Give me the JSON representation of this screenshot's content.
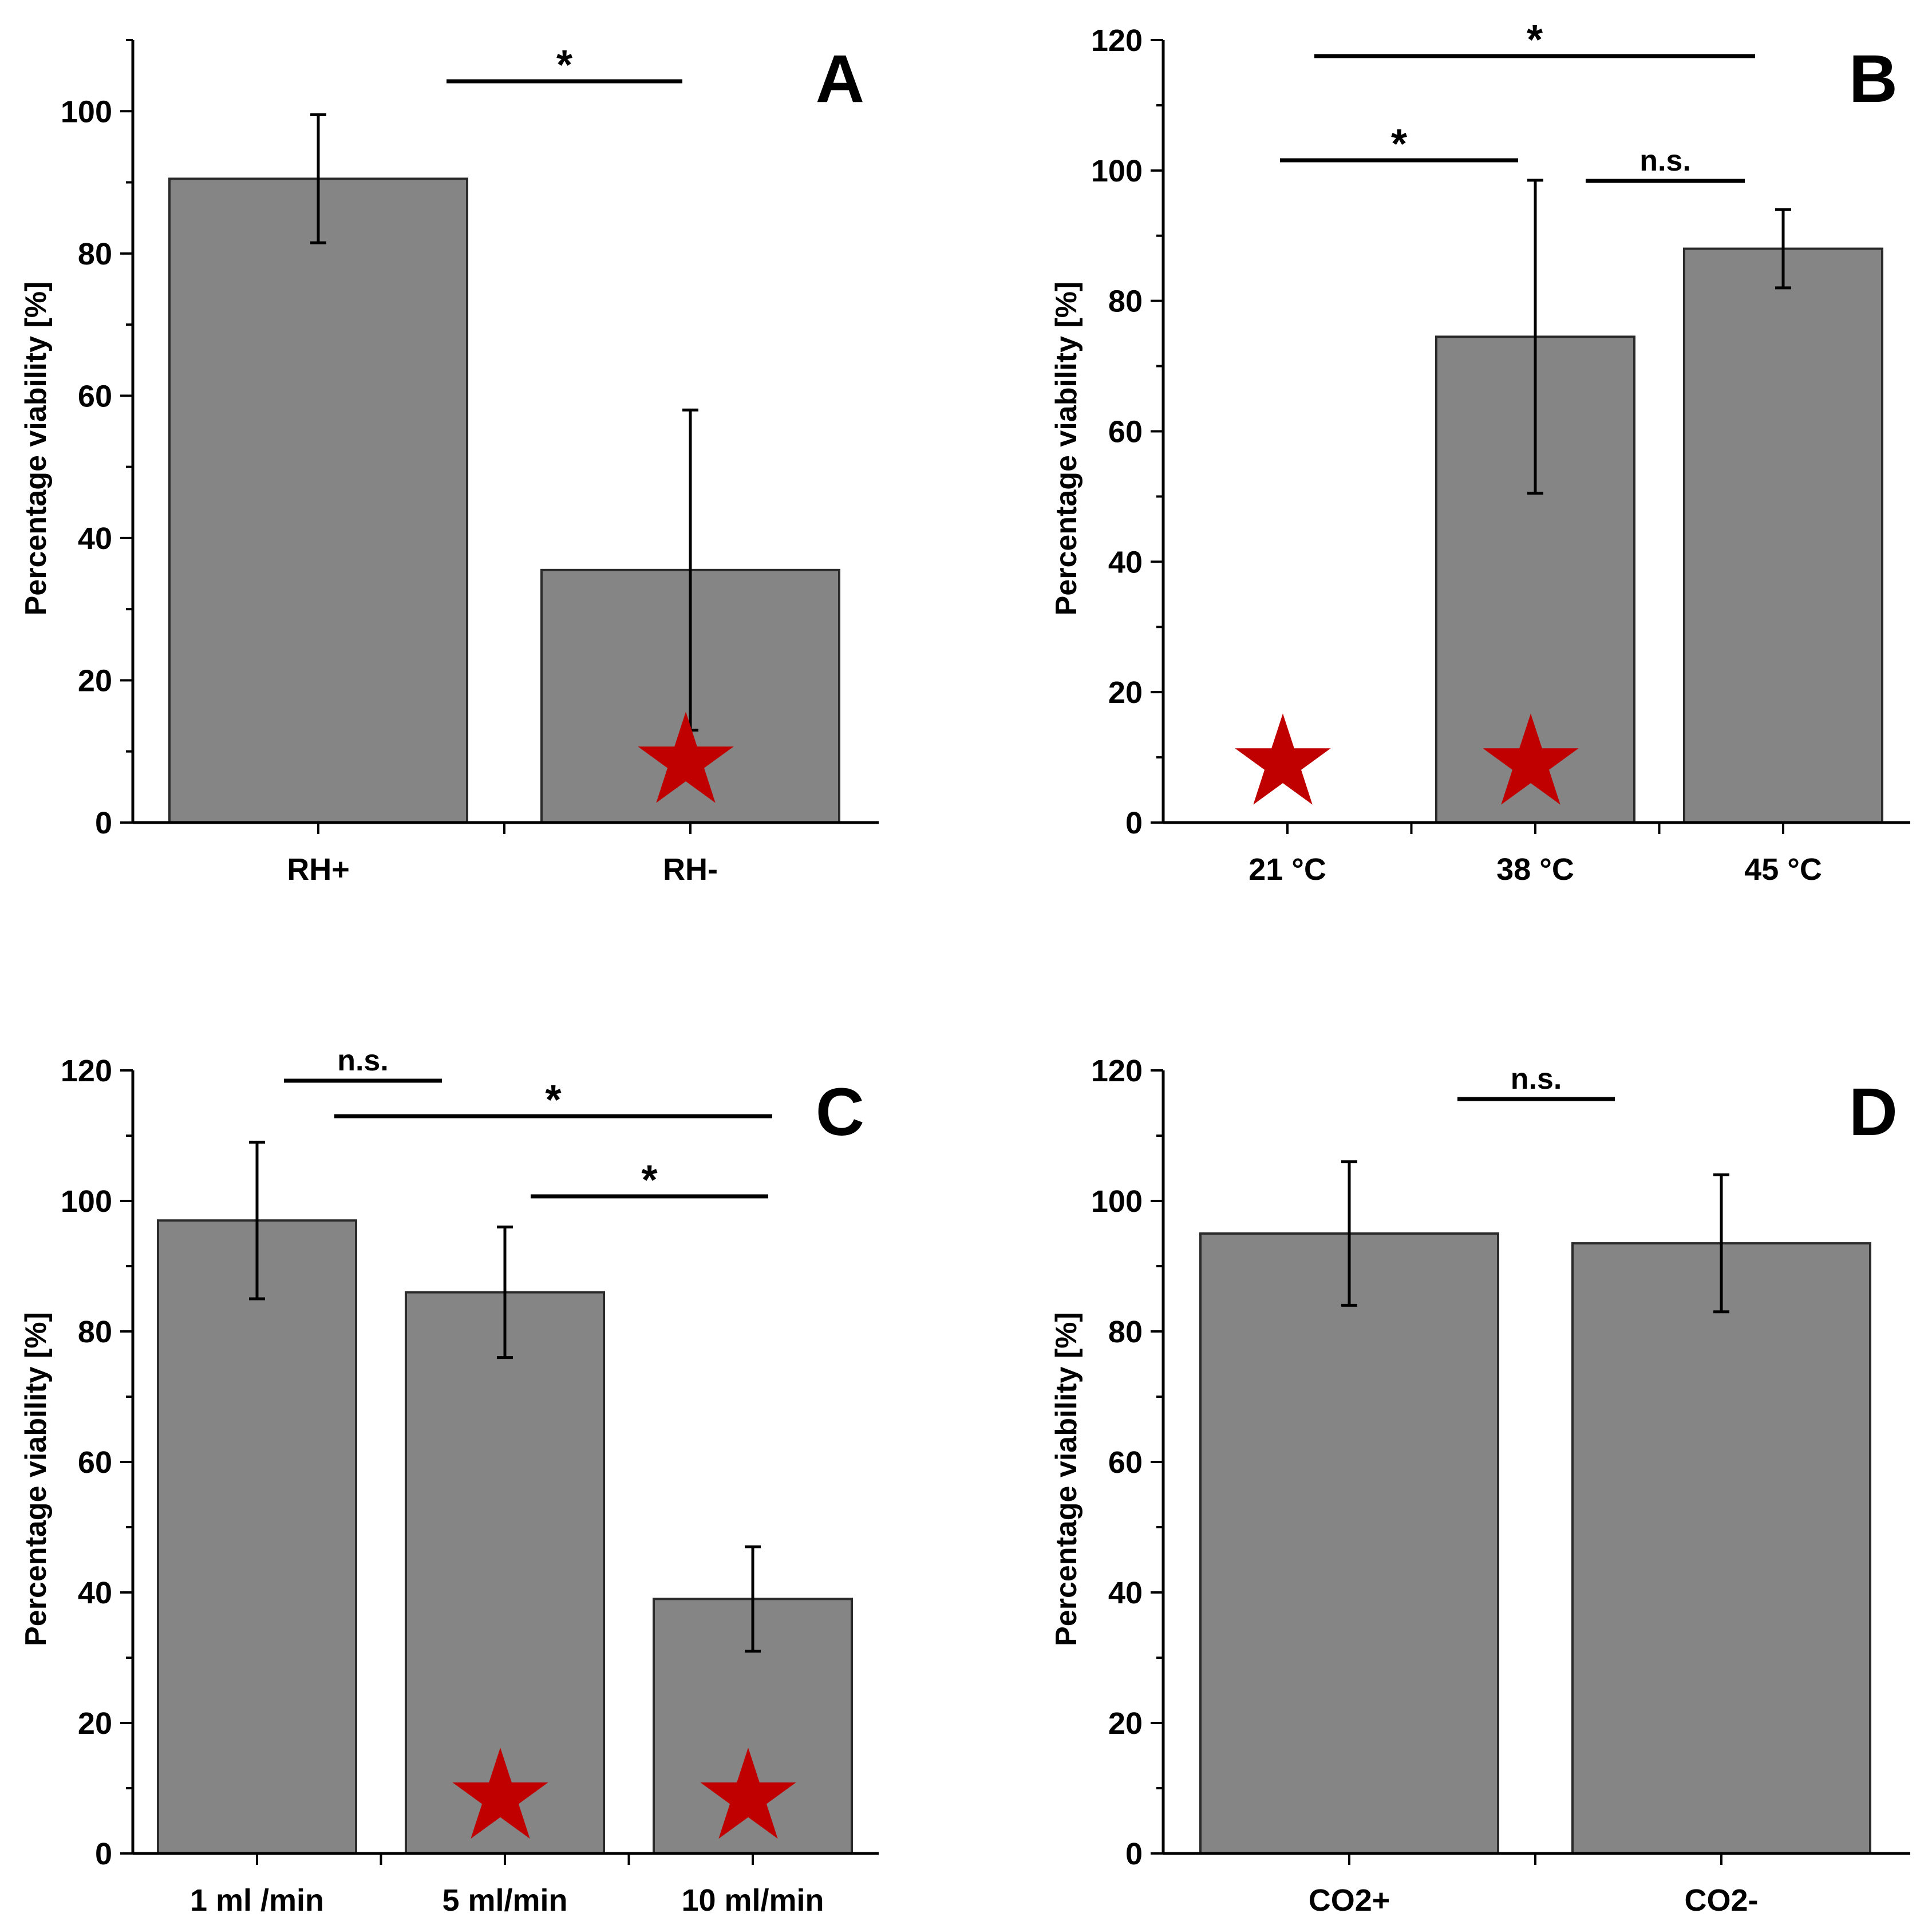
{
  "colors": {
    "bar": "#858585",
    "bar_edge": "#2b2b2b",
    "star": "#c00000",
    "axis": "#000000"
  },
  "chart_data": [
    {
      "type": "bar",
      "panel_label": "A",
      "ylabel": "Percentage viability [%]",
      "ylim": [
        0,
        110
      ],
      "yticks": [
        0,
        20,
        40,
        60,
        80,
        100
      ],
      "categories": [
        "RH+",
        "RH-"
      ],
      "values": [
        90.5,
        35.5
      ],
      "errors": [
        9,
        22.5
      ],
      "stars": [
        false,
        true
      ],
      "significance": [
        {
          "from": 0,
          "to": 1,
          "label": "*"
        }
      ]
    },
    {
      "type": "bar",
      "panel_label": "B",
      "ylabel": "Percentage viability [%]",
      "ylim": [
        0,
        120
      ],
      "yticks": [
        0,
        20,
        40,
        60,
        80,
        100,
        120
      ],
      "categories": [
        "21 °C",
        "38 °C",
        "45 °C"
      ],
      "values": [
        0,
        74.5,
        88
      ],
      "errors": [
        0,
        24,
        6
      ],
      "stars": [
        true,
        true,
        false
      ],
      "significance": [
        {
          "from": 0,
          "to": 1,
          "label": "*"
        },
        {
          "from": 1,
          "to": 2,
          "label": "n.s."
        },
        {
          "from": 0,
          "to": 2,
          "label": "*"
        }
      ]
    },
    {
      "type": "bar",
      "panel_label": "C",
      "ylabel": "Percentage viability [%]",
      "ylim": [
        0,
        120
      ],
      "yticks": [
        0,
        20,
        40,
        60,
        80,
        100,
        120
      ],
      "categories": [
        "1 ml /min",
        "5 ml/min",
        "10 ml/min"
      ],
      "values": [
        97,
        86,
        39
      ],
      "errors": [
        12,
        10,
        8
      ],
      "stars": [
        false,
        true,
        true
      ],
      "significance": [
        {
          "from": 0,
          "to": 1,
          "label": "n.s."
        },
        {
          "from": 0,
          "to": 2,
          "label": "*"
        },
        {
          "from": 1,
          "to": 2,
          "label": "*"
        }
      ]
    },
    {
      "type": "bar",
      "panel_label": "D",
      "ylabel": "Percentage viability [%]",
      "ylim": [
        0,
        120
      ],
      "yticks": [
        0,
        20,
        40,
        60,
        80,
        100,
        120
      ],
      "categories": [
        "CO2+",
        "CO2-"
      ],
      "values": [
        95,
        93.5
      ],
      "errors": [
        11,
        10.5
      ],
      "stars": [
        false,
        false
      ],
      "significance": [
        {
          "from": 0,
          "to": 1,
          "label": "n.s."
        }
      ]
    }
  ]
}
